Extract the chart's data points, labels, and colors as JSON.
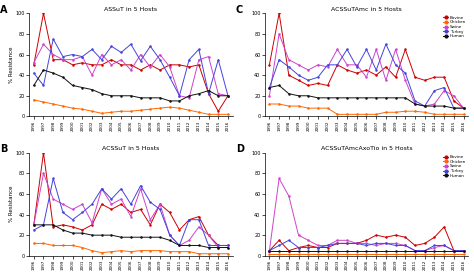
{
  "years": [
    "1996",
    "1997",
    "1998",
    "1999",
    "2000",
    "2001",
    "2002",
    "2003",
    "2004",
    "2005",
    "2006",
    "2007",
    "2008",
    "2009",
    "2010",
    "2011",
    "2012",
    "2013",
    "2014",
    "2015",
    "2016"
  ],
  "panels": [
    {
      "label": "A",
      "title": "ASSuT in 5 Hosts",
      "bovine": [
        50,
        100,
        55,
        55,
        50,
        52,
        50,
        50,
        55,
        50,
        50,
        45,
        50,
        45,
        50,
        50,
        48,
        50,
        22,
        5,
        20
      ],
      "chicken": [
        16,
        14,
        12,
        10,
        8,
        7,
        5,
        3,
        4,
        5,
        5,
        6,
        7,
        8,
        9,
        8,
        6,
        4,
        2,
        2,
        2
      ],
      "swine": [
        52,
        70,
        60,
        55,
        55,
        58,
        40,
        60,
        50,
        55,
        45,
        60,
        48,
        60,
        48,
        20,
        18,
        55,
        58,
        22,
        20
      ],
      "turkey": [
        42,
        30,
        75,
        58,
        60,
        58,
        65,
        55,
        68,
        62,
        70,
        54,
        68,
        55,
        38,
        20,
        55,
        65,
        22,
        55,
        20
      ],
      "human": [
        30,
        45,
        42,
        38,
        30,
        28,
        26,
        22,
        20,
        20,
        20,
        18,
        18,
        18,
        15,
        15,
        20,
        22,
        25,
        20,
        20
      ]
    },
    {
      "label": "C",
      "title": "ACSSuTAmc in 5 Hosts",
      "bovine": [
        50,
        100,
        40,
        35,
        30,
        32,
        30,
        50,
        45,
        42,
        45,
        40,
        48,
        38,
        65,
        38,
        35,
        38,
        38,
        15,
        8
      ],
      "chicken": [
        12,
        12,
        10,
        10,
        8,
        8,
        8,
        2,
        2,
        2,
        2,
        2,
        4,
        4,
        5,
        5,
        4,
        2,
        2,
        2,
        2
      ],
      "swine": [
        20,
        80,
        55,
        50,
        45,
        50,
        48,
        65,
        50,
        50,
        38,
        65,
        35,
        65,
        35,
        12,
        10,
        12,
        25,
        20,
        8
      ],
      "turkey": [
        28,
        55,
        48,
        40,
        35,
        38,
        50,
        50,
        65,
        48,
        65,
        45,
        70,
        50,
        42,
        15,
        10,
        25,
        28,
        8,
        8
      ],
      "human": [
        28,
        30,
        22,
        20,
        20,
        18,
        18,
        18,
        18,
        18,
        18,
        18,
        18,
        18,
        18,
        12,
        10,
        10,
        10,
        8,
        8
      ]
    },
    {
      "label": "B",
      "title": "ACSSuT in 5 Hosts",
      "bovine": [
        30,
        100,
        28,
        30,
        28,
        25,
        30,
        50,
        45,
        50,
        42,
        45,
        30,
        50,
        42,
        25,
        35,
        38,
        20,
        10,
        10
      ],
      "chicken": [
        12,
        12,
        10,
        10,
        10,
        8,
        5,
        3,
        4,
        5,
        4,
        5,
        5,
        5,
        4,
        4,
        4,
        2,
        2,
        2,
        2
      ],
      "swine": [
        30,
        80,
        55,
        50,
        45,
        50,
        32,
        65,
        50,
        55,
        38,
        65,
        35,
        50,
        20,
        10,
        15,
        28,
        20,
        8,
        8
      ],
      "turkey": [
        25,
        30,
        75,
        42,
        35,
        42,
        50,
        65,
        55,
        65,
        50,
        68,
        52,
        45,
        20,
        10,
        35,
        35,
        10,
        10,
        10
      ],
      "human": [
        30,
        30,
        30,
        25,
        22,
        22,
        20,
        20,
        20,
        18,
        18,
        18,
        18,
        18,
        15,
        10,
        10,
        10,
        8,
        8,
        8
      ]
    },
    {
      "label": "D",
      "title": "ACSSuTAmcAxoTio in 5 Hosts",
      "bovine": [
        5,
        15,
        5,
        8,
        10,
        8,
        8,
        12,
        12,
        12,
        15,
        20,
        18,
        20,
        18,
        10,
        12,
        18,
        28,
        5,
        5
      ],
      "chicken": [
        2,
        2,
        2,
        2,
        2,
        2,
        2,
        2,
        2,
        2,
        2,
        2,
        2,
        2,
        2,
        2,
        2,
        2,
        2,
        2,
        2
      ],
      "swine": [
        5,
        75,
        58,
        20,
        15,
        10,
        10,
        15,
        15,
        12,
        12,
        10,
        12,
        12,
        10,
        5,
        5,
        8,
        10,
        5,
        5
      ],
      "turkey": [
        5,
        10,
        15,
        8,
        8,
        8,
        10,
        12,
        12,
        12,
        10,
        12,
        12,
        10,
        10,
        5,
        5,
        10,
        10,
        5,
        5
      ],
      "human": [
        5,
        5,
        5,
        5,
        5,
        5,
        5,
        5,
        5,
        5,
        5,
        5,
        5,
        5,
        5,
        5,
        5,
        5,
        5,
        5,
        5
      ]
    }
  ],
  "colors": {
    "bovine": "#cc0000",
    "chicken": "#ff6600",
    "swine": "#cc44cc",
    "turkey": "#4444dd",
    "human": "#111111"
  },
  "legend_labels": [
    "Bovine",
    "Chicken",
    "Swine",
    "Turkey",
    "Human"
  ],
  "ylabel": "% Resistance",
  "ylim": [
    0,
    100
  ],
  "yticks": [
    0,
    20,
    40,
    60,
    80,
    100
  ],
  "background": "#ffffff"
}
